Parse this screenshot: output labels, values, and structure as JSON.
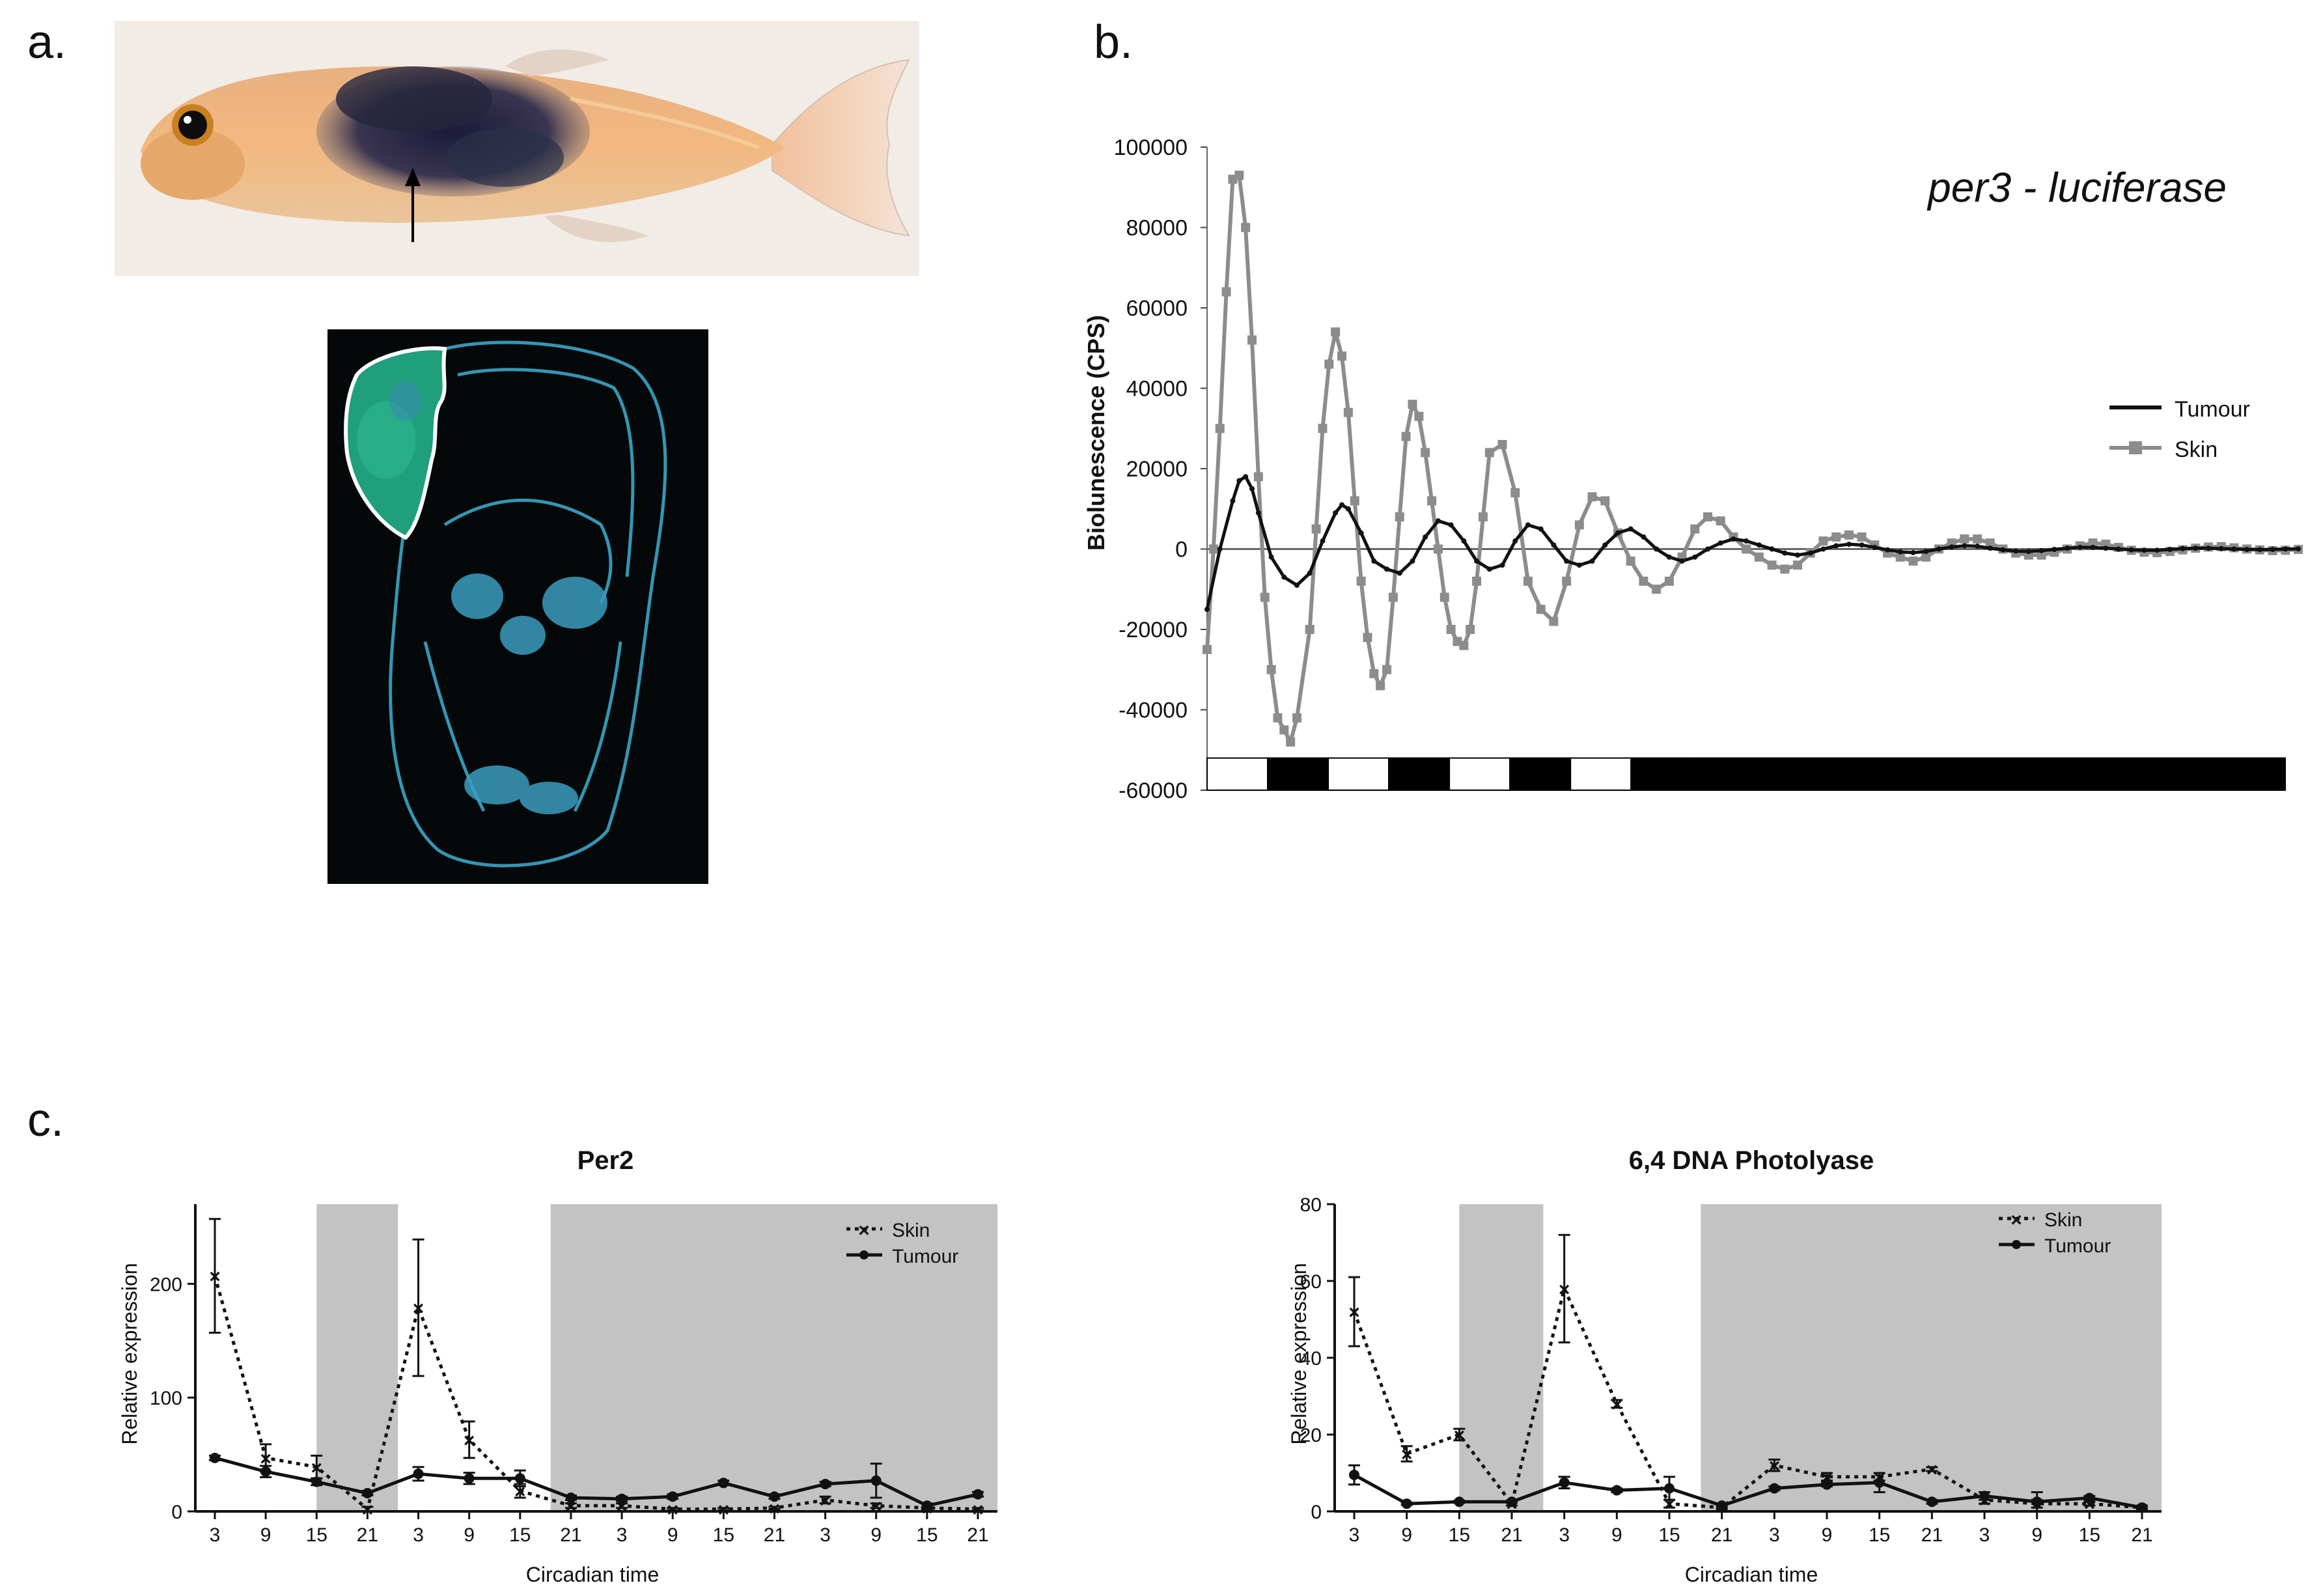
{
  "panel_labels": {
    "a": "a.",
    "b": "b.",
    "c": "c."
  },
  "chart_data": [
    {
      "id": "luciferase",
      "type": "line",
      "title": "per3 - luciferase",
      "ylabel": "Biolunescence (CPS)",
      "xlabel": "",
      "ylim": [
        -60000,
        100000
      ],
      "yticks": [
        100000,
        80000,
        60000,
        40000,
        20000,
        0,
        -20000,
        -40000,
        -60000
      ],
      "xlim": [
        0,
        170
      ],
      "legend": {
        "position": "right",
        "entries": [
          "Tumour",
          "Skin"
        ]
      },
      "light_dark_bar": [
        "light",
        "dark",
        "light",
        "dark",
        "light",
        "dark",
        "light",
        "dark",
        "dark"
      ],
      "light_dark_bar_hours": [
        10,
        10,
        10,
        10,
        10,
        10,
        10,
        10,
        98
      ],
      "series": [
        {
          "name": "Skin",
          "color": "#8c8c8c",
          "x": [
            0,
            1,
            2,
            3,
            4,
            5,
            6,
            7,
            8,
            9,
            10,
            11,
            12,
            13,
            14,
            16,
            17,
            18,
            19,
            20,
            21,
            22,
            23,
            24,
            25,
            26,
            27,
            28,
            29,
            30,
            31,
            32,
            33,
            34,
            35,
            36,
            37,
            38,
            39,
            40,
            41,
            42,
            43,
            44,
            46,
            48,
            50,
            52,
            54,
            56,
            58,
            60,
            62,
            64,
            66,
            68,
            70,
            72,
            74,
            76,
            78,
            80,
            82,
            84,
            86,
            88,
            90,
            92,
            94,
            96,
            98,
            100,
            102,
            104,
            106,
            108,
            110,
            112,
            114,
            116,
            118,
            120,
            122,
            124,
            126,
            128,
            130,
            132,
            134,
            136,
            138,
            140,
            142,
            144,
            146,
            148,
            150,
            152,
            154,
            156,
            158,
            160,
            162,
            164,
            166,
            168,
            170
          ],
          "values": [
            -25000,
            0,
            30000,
            64000,
            92000,
            93000,
            80000,
            52000,
            18000,
            -12000,
            -30000,
            -42000,
            -45000,
            -48000,
            -42000,
            -20000,
            5000,
            30000,
            46000,
            54000,
            48000,
            34000,
            12000,
            -8000,
            -22000,
            -31000,
            -34000,
            -30000,
            -12000,
            8000,
            28000,
            36000,
            33000,
            24000,
            12000,
            0,
            -12000,
            -20000,
            -23000,
            -24000,
            -20000,
            -8000,
            8000,
            24000,
            26000,
            14000,
            -8000,
            -15000,
            -18000,
            -8000,
            6000,
            13000,
            12000,
            4000,
            -3000,
            -8000,
            -10000,
            -8000,
            -2000,
            5000,
            8000,
            7000,
            3000,
            0,
            -2000,
            -4000,
            -5000,
            -4000,
            -1000,
            2000,
            3000,
            3500,
            3000,
            1000,
            -1000,
            -2000,
            -3000,
            -2000,
            0,
            1500,
            2500,
            2500,
            1500,
            0,
            -1000,
            -1500,
            -1500,
            -800,
            0,
            800,
            1500,
            1200,
            400,
            -300,
            -800,
            -900,
            -600,
            -200,
            200,
            500,
            600,
            300,
            0,
            -200,
            -400,
            -300,
            -100
          ]
        },
        {
          "name": "Tumour",
          "color": "#111111",
          "x": [
            0,
            2,
            4,
            5,
            6,
            7,
            8,
            10,
            12,
            14,
            16,
            18,
            20,
            21,
            22,
            24,
            26,
            28,
            30,
            32,
            34,
            36,
            38,
            40,
            42,
            44,
            46,
            48,
            50,
            52,
            54,
            56,
            58,
            60,
            62,
            64,
            66,
            68,
            70,
            72,
            74,
            76,
            78,
            80,
            82,
            84,
            86,
            88,
            90,
            92,
            94,
            96,
            98,
            100,
            102,
            104,
            106,
            108,
            110,
            112,
            114,
            116,
            118,
            120,
            122,
            124,
            126,
            128,
            130,
            132,
            134,
            136,
            138,
            140,
            142,
            144,
            146,
            148,
            150,
            152,
            154,
            156,
            158,
            160,
            162,
            164,
            166,
            168,
            170
          ],
          "values": [
            -15000,
            0,
            12000,
            17000,
            18000,
            15000,
            9000,
            -2000,
            -7000,
            -9000,
            -6000,
            2000,
            9000,
            11000,
            10000,
            4000,
            -3000,
            -5000,
            -6000,
            -3000,
            3000,
            7000,
            6000,
            2000,
            -3000,
            -5000,
            -4000,
            2000,
            6000,
            5000,
            1000,
            -3000,
            -4000,
            -3000,
            1000,
            4000,
            5000,
            3000,
            0,
            -2000,
            -3000,
            -2000,
            0,
            1500,
            2500,
            2000,
            1000,
            0,
            -1000,
            -1500,
            -1000,
            0,
            800,
            1200,
            1000,
            400,
            -200,
            -700,
            -900,
            -600,
            0,
            500,
            800,
            700,
            200,
            -200,
            -500,
            -600,
            -400,
            -100,
            200,
            400,
            400,
            200,
            0,
            -200,
            -300,
            -300,
            -100,
            100,
            200,
            200,
            100,
            0,
            -100,
            -150,
            -100,
            0,
            50
          ]
        }
      ]
    },
    {
      "id": "per2",
      "type": "line",
      "title": "Per2",
      "xlabel": "Circadian time",
      "ylabel": "Relative expression",
      "ylim": [
        0,
        270
      ],
      "yticks": [
        0,
        100,
        200
      ],
      "categories": [
        "3",
        "9",
        "15",
        "21",
        "3",
        "9",
        "15",
        "21",
        "3",
        "9",
        "15",
        "21",
        "3",
        "9",
        "15",
        "21"
      ],
      "dark_periods": [
        [
          2,
          3.6
        ],
        [
          6.6,
          15.4
        ]
      ],
      "legend": {
        "position": "top-right",
        "entries": [
          "Skin",
          "Tumour"
        ]
      },
      "series": [
        {
          "name": "Skin",
          "style": "dotted",
          "marker": "x",
          "values": [
            207,
            47,
            39,
            2,
            179,
            63,
            18,
            5,
            5,
            2,
            2,
            3,
            10,
            5,
            3,
            2
          ],
          "errors": [
            50,
            12,
            10,
            2,
            60,
            16,
            6,
            2,
            2,
            1,
            1,
            1,
            3,
            2,
            1,
            1
          ]
        },
        {
          "name": "Tumour",
          "style": "solid",
          "marker": "circle",
          "values": [
            47,
            35,
            26,
            16,
            33,
            29,
            29,
            12,
            11,
            13,
            25,
            13,
            24,
            27,
            5,
            15
          ],
          "errors": [
            2,
            5,
            3,
            2,
            6,
            5,
            7,
            2,
            2,
            2,
            2,
            2,
            2,
            15,
            2,
            2
          ]
        }
      ]
    },
    {
      "id": "photolyase",
      "type": "line",
      "title": "6,4 DNA Photolyase",
      "xlabel": "Circadian time",
      "ylabel": "Relative expression",
      "ylim": [
        0,
        80
      ],
      "yticks": [
        0,
        20,
        40,
        60,
        80
      ],
      "categories": [
        "3",
        "9",
        "15",
        "21",
        "3",
        "9",
        "15",
        "21",
        "3",
        "9",
        "15",
        "21",
        "3",
        "9",
        "15",
        "21"
      ],
      "dark_periods": [
        [
          2,
          3.6
        ],
        [
          6.6,
          15.4
        ]
      ],
      "legend": {
        "position": "top-right",
        "entries": [
          "Skin",
          "Tumour"
        ]
      },
      "series": [
        {
          "name": "Skin",
          "style": "dotted",
          "marker": "x",
          "values": [
            52,
            15,
            20,
            2,
            58,
            28,
            2,
            1,
            12,
            9,
            9,
            11,
            3,
            2,
            2,
            1
          ],
          "errors": [
            9,
            2,
            1.5,
            0.5,
            14,
            1,
            1,
            0.5,
            1.5,
            1,
            1,
            0.5,
            1,
            1,
            0.5,
            0.5
          ]
        },
        {
          "name": "Tumour",
          "style": "solid",
          "marker": "circle",
          "values": [
            9.5,
            2,
            2.5,
            2.5,
            7.5,
            5.5,
            6,
            1.5,
            6,
            7,
            7.5,
            2.5,
            4,
            2.5,
            3.5,
            1
          ],
          "errors": [
            2.5,
            0.3,
            0.3,
            0.3,
            1.5,
            0.5,
            3,
            0.5,
            0.5,
            0.5,
            2.5,
            0.5,
            1,
            2.5,
            0.5,
            0.3
          ]
        }
      ]
    }
  ]
}
